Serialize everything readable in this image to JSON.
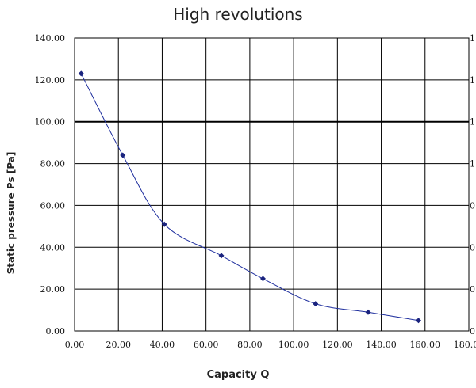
{
  "chart_data": {
    "type": "line",
    "title": "High revolutions",
    "xlabel": "Capacity Q",
    "ylabel": "Static pressure Ps [Pa]",
    "xlim": [
      0,
      180
    ],
    "ylim": [
      0,
      140
    ],
    "x_ticks": [
      0,
      20,
      40,
      60,
      80,
      100,
      120,
      140,
      160,
      180
    ],
    "x_tick_labels": [
      "0.00",
      "20.00",
      "40.00",
      "60.00",
      "80.00",
      "100.00",
      "120.00",
      "140.00",
      "160.00",
      "180.00"
    ],
    "y_ticks": [
      0,
      20,
      40,
      60,
      80,
      100,
      120,
      140
    ],
    "y_tick_labels": [
      "0.00",
      "20.00",
      "40.00",
      "60.00",
      "80.00",
      "100.00",
      "120.00",
      "140.00"
    ],
    "right_axis_fragments": [
      "1",
      "1",
      "1",
      "1",
      "0",
      "0",
      "0",
      "0"
    ],
    "grid": true,
    "legend": "none",
    "series": [
      {
        "color": "#1f2f9e",
        "marker_color": "#1a237e",
        "points": [
          {
            "x": 3,
            "y": 123
          },
          {
            "x": 22,
            "y": 84
          },
          {
            "x": 41,
            "y": 51
          },
          {
            "x": 67,
            "y": 36
          },
          {
            "x": 86,
            "y": 25
          },
          {
            "x": 110,
            "y": 13
          },
          {
            "x": 134,
            "y": 9
          },
          {
            "x": 157,
            "y": 5
          }
        ]
      }
    ]
  }
}
